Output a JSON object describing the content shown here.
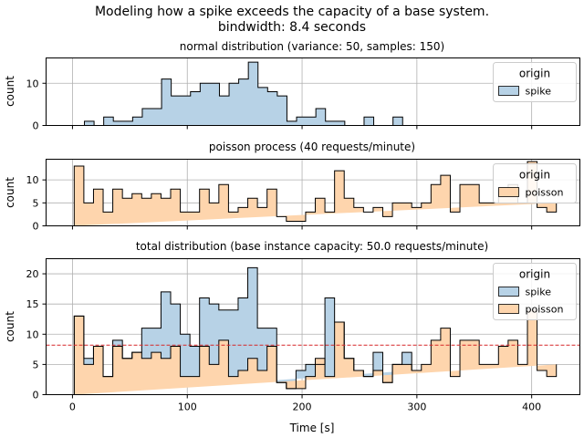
{
  "figure": {
    "title_line1": "Modeling how a spike exceeds the capacity of a base system.",
    "title_line2": "bindwidth: 8.4 seconds",
    "xlabel": "Time [s]",
    "xticks": [
      "0",
      "100",
      "200",
      "300",
      "400"
    ]
  },
  "colors": {
    "spike": "#b7d2e6",
    "poisson": "#fed5ad",
    "grid": "#b0b0b0",
    "capacity_line": "#d62728"
  },
  "chart_data": [
    {
      "type": "histogram",
      "title": "normal distribution (variance: 50, samples: 150)",
      "ylabel": "count",
      "xlim": [
        -23,
        442
      ],
      "ylim": [
        0,
        16
      ],
      "yticks": [
        0,
        10
      ],
      "legend": {
        "title": "origin",
        "position": "top-right",
        "entries": [
          "spike"
        ]
      },
      "grid": true,
      "series": [
        {
          "name": "spike",
          "bin_edges": [
            10.4,
            18.8,
            27.2,
            35.6,
            44.0,
            52.4,
            60.8,
            69.2,
            77.6,
            86.0,
            94.4,
            102.8,
            111.2,
            119.6,
            128.0,
            136.4,
            144.8,
            153.2,
            161.6,
            170.0,
            178.4,
            186.8,
            195.2,
            203.6,
            212.0,
            220.4,
            228.8,
            237.2,
            245.6,
            254.0,
            262.4,
            270.8,
            279.2,
            287.6
          ],
          "counts": [
            1,
            0,
            2,
            1,
            1,
            2,
            4,
            4,
            11,
            7,
            7,
            8,
            10,
            10,
            7,
            10,
            11,
            15,
            9,
            8,
            7,
            1,
            2,
            2,
            4,
            1,
            1,
            0,
            0,
            2,
            0,
            0,
            2
          ]
        }
      ]
    },
    {
      "type": "histogram",
      "title": "poisson process (40 requests/minute)",
      "ylabel": "count",
      "xlim": [
        -23,
        442
      ],
      "ylim": [
        0,
        14.5
      ],
      "yticks": [
        0,
        5,
        10
      ],
      "legend": {
        "title": "origin",
        "position": "top-right",
        "entries": [
          "poisson"
        ]
      },
      "grid": true,
      "series": [
        {
          "name": "poisson",
          "bin_edges": [
            1.5,
            9.9,
            18.3,
            26.7,
            35.1,
            43.5,
            51.9,
            60.3,
            68.7,
            77.1,
            85.5,
            93.9,
            102.3,
            110.7,
            119.1,
            127.5,
            135.9,
            144.3,
            152.7,
            161.1,
            169.5,
            177.9,
            186.3,
            194.7,
            203.1,
            211.5,
            219.9,
            228.3,
            236.7,
            245.1,
            253.5,
            261.9,
            270.3,
            278.7,
            287.1,
            295.5,
            303.9,
            312.3,
            320.7,
            329.1,
            337.5,
            345.9,
            354.3,
            362.7,
            371.1,
            379.5,
            387.9,
            396.3,
            404.7,
            413.1,
            421.5
          ],
          "counts": [
            13,
            5,
            8,
            3,
            8,
            6,
            7,
            6,
            7,
            6,
            8,
            3,
            3,
            8,
            5,
            9,
            3,
            4,
            6,
            4,
            8,
            2,
            1,
            1,
            3,
            6,
            3,
            12,
            6,
            4,
            3,
            4,
            2,
            5,
            5,
            4,
            5,
            9,
            11,
            3,
            9,
            9,
            5,
            5,
            8,
            9,
            5,
            14,
            4,
            3,
            5
          ]
        }
      ]
    },
    {
      "type": "histogram",
      "title": "total distribution (base instance capacity: 50.0 requests/minute)",
      "ylabel": "count",
      "xlim": [
        -23,
        442
      ],
      "ylim": [
        0,
        22.5
      ],
      "yticks": [
        0,
        5,
        10,
        15,
        20
      ],
      "legend": {
        "title": "origin",
        "position": "top-right",
        "entries": [
          "spike",
          "poisson"
        ]
      },
      "grid": true,
      "capacity_line_y": 8.2,
      "series": [
        {
          "name": "poisson",
          "bin_edges": [
            1.5,
            9.9,
            18.3,
            26.7,
            35.1,
            43.5,
            51.9,
            60.3,
            68.7,
            77.1,
            85.5,
            93.9,
            102.3,
            110.7,
            119.1,
            127.5,
            135.9,
            144.3,
            152.7,
            161.1,
            169.5,
            177.9,
            186.3,
            194.7,
            203.1,
            211.5,
            219.9,
            228.3,
            236.7,
            245.1,
            253.5,
            261.9,
            270.3,
            278.7,
            287.1,
            295.5,
            303.9,
            312.3,
            320.7,
            329.1,
            337.5,
            345.9,
            354.3,
            362.7,
            371.1,
            379.5,
            387.9,
            396.3,
            404.7,
            413.1,
            421.5
          ],
          "counts": [
            13,
            5,
            8,
            3,
            8,
            6,
            7,
            6,
            7,
            6,
            8,
            3,
            3,
            8,
            5,
            9,
            3,
            4,
            6,
            4,
            8,
            2,
            1,
            1,
            3,
            6,
            3,
            12,
            6,
            4,
            3,
            4,
            2,
            5,
            5,
            4,
            5,
            9,
            11,
            3,
            9,
            9,
            5,
            5,
            8,
            9,
            5,
            14,
            4,
            3,
            5
          ]
        },
        {
          "name": "spike",
          "stacked_total": {
            "bin_edges": [
              1.5,
              9.9,
              18.3,
              26.7,
              35.1,
              43.5,
              51.9,
              60.3,
              68.7,
              77.1,
              85.5,
              93.9,
              102.3,
              110.7,
              119.1,
              127.5,
              135.9,
              144.3,
              152.7,
              161.1,
              169.5,
              177.9,
              186.3,
              194.7,
              203.1,
              211.5,
              219.9,
              228.3,
              236.7,
              245.1,
              253.5,
              261.9,
              270.3,
              278.7,
              287.1,
              295.5
            ],
            "counts": [
              13,
              6,
              8,
              3,
              9,
              6,
              7,
              11,
              11,
              17,
              15,
              10,
              8,
              16,
              15,
              14,
              14,
              16,
              21,
              11,
              11,
              2,
              1,
              4,
              5,
              5,
              16,
              12,
              6,
              4,
              3,
              7,
              2,
              5,
              7,
              4
            ]
          }
        }
      ]
    }
  ]
}
